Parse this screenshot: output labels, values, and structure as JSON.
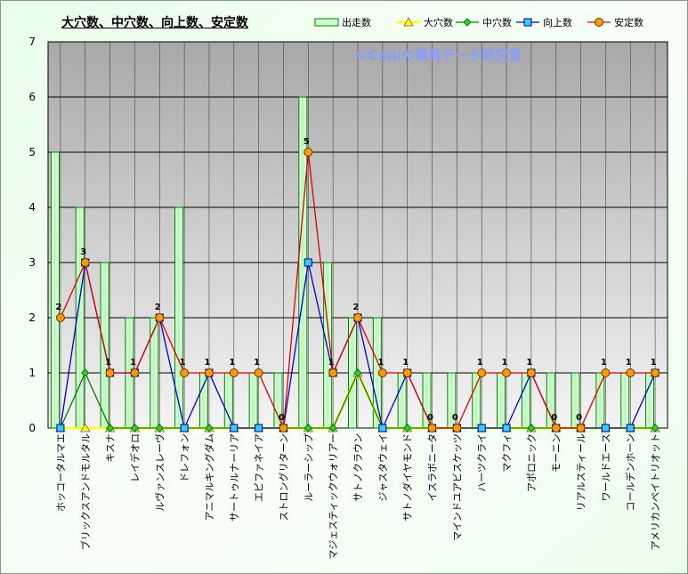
{
  "chart_data": {
    "type": "bar+line",
    "title": "大穴数、中穴数、向上数、安定数",
    "categories": [
      "ホッコータルマエ",
      "ブリックスアンドモルタル",
      "キスナ",
      "レイデオロ",
      "ルヴァンスレーヴ",
      "ドレフォン",
      "アニマルキングダム",
      "サートゥルナーリア",
      "エピファネイア",
      "ストロングリターン",
      "ルーラーシップ",
      "マジェスティックウォリアー",
      "サトノクラウン",
      "ジャスタウェイ",
      "サトノダイヤモンド",
      "イスラボニータ",
      "マインドユアビスケッツ",
      "ハーツクライ",
      "マクフィ",
      "アポロニック",
      "モーニン",
      "リアルスティール",
      "ワールドエース",
      "コールデンホーン",
      "アメリカンペイトリオット"
    ],
    "series": [
      {
        "name": "出走数",
        "kind": "bar",
        "color": "#ccffcc",
        "values": [
          5,
          4,
          3,
          2,
          2,
          4,
          1,
          1,
          1,
          1,
          6,
          3,
          2,
          2,
          1,
          1,
          1,
          1,
          1,
          1,
          1,
          1,
          1,
          1,
          1
        ]
      },
      {
        "name": "大穴数",
        "kind": "line",
        "marker": "triangle",
        "color": "#ffff00",
        "values": [
          0,
          0,
          0,
          0,
          0,
          0,
          0,
          0,
          0,
          0,
          0,
          0,
          1,
          0,
          0,
          0,
          0,
          0,
          0,
          0,
          0,
          0,
          0,
          0,
          0
        ]
      },
      {
        "name": "中穴数",
        "kind": "line",
        "marker": "diamond",
        "color": "#008000",
        "values": [
          0,
          1,
          0,
          0,
          0,
          0,
          0,
          0,
          0,
          0,
          0,
          0,
          1,
          0,
          0,
          0,
          0,
          0,
          0,
          0,
          0,
          0,
          0,
          0,
          0
        ]
      },
      {
        "name": "向上数",
        "kind": "line",
        "marker": "square",
        "color": "#0000cc",
        "values": [
          0,
          3,
          1,
          1,
          2,
          0,
          1,
          0,
          0,
          0,
          3,
          1,
          2,
          0,
          1,
          0,
          0,
          0,
          0,
          1,
          0,
          0,
          0,
          0,
          1
        ]
      },
      {
        "name": "安定数",
        "kind": "line",
        "marker": "circle",
        "color": "#dd0000",
        "values": [
          2,
          3,
          1,
          1,
          2,
          1,
          1,
          1,
          1,
          0,
          5,
          1,
          2,
          1,
          1,
          0,
          0,
          1,
          1,
          1,
          0,
          0,
          1,
          1,
          1
        ]
      }
    ],
    "data_labels": [
      "2",
      "3",
      "1",
      "1",
      "2",
      "1",
      "1",
      "1",
      "1",
      "0",
      "5",
      "1",
      "2",
      "1",
      "1",
      "0",
      "0",
      "1",
      "1",
      "1",
      "0",
      "0",
      "1",
      "1",
      "1"
    ],
    "yticks": [
      "0",
      "1",
      "2",
      "3",
      "4",
      "5",
      "6",
      "7"
    ],
    "ylim": [
      0,
      7
    ],
    "grid": true,
    "legend_position": "top-right"
  },
  "watermark": "©Caniの競馬データ研究室",
  "colors": {
    "plot_bg_top": "#a8a8a8",
    "plot_bg_bottom": "#f4f4f4",
    "grid": "#000000",
    "bar_border": "#008000",
    "marker_orange": "#ff9900"
  }
}
